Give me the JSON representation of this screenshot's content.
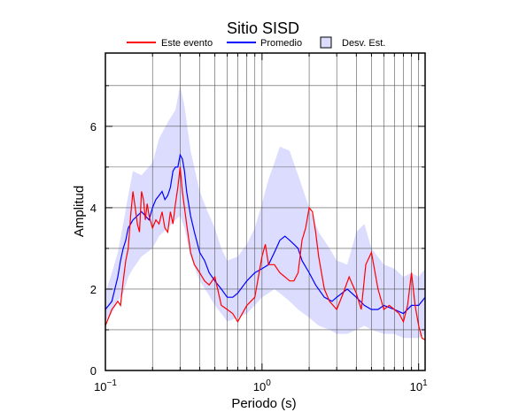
{
  "chart_data": {
    "type": "line",
    "title": "Sitio SISD",
    "xlabel": "Periodo (s)",
    "ylabel": "Amplitud",
    "xscale": "log",
    "xlim": [
      0.1,
      11
    ],
    "ylim": [
      0,
      7.8
    ],
    "x_tick_labels": [
      {
        "value": 0.1,
        "base": "10",
        "exp": "−1"
      },
      {
        "value": 1,
        "base": "10",
        "exp": "0"
      },
      {
        "value": 10,
        "base": "10",
        "exp": "1"
      }
    ],
    "y_ticks": [
      0,
      2,
      4,
      6
    ],
    "grid": true,
    "legend_position": "top",
    "band": {
      "name": "Desv. Est.",
      "color": "#dcdcff",
      "x": [
        0.1,
        0.11,
        0.12,
        0.13,
        0.14,
        0.15,
        0.17,
        0.2,
        0.22,
        0.25,
        0.28,
        0.3,
        0.32,
        0.35,
        0.4,
        0.45,
        0.5,
        0.55,
        0.6,
        0.7,
        0.8,
        0.9,
        1.0,
        1.1,
        1.2,
        1.3,
        1.5,
        1.7,
        2.0,
        2.3,
        2.7,
        3.0,
        3.5,
        4.0,
        4.5,
        5.0,
        6.0,
        7.0,
        8.0,
        9.0,
        10.0,
        11.0
      ],
      "upper": [
        1.9,
        2.4,
        2.9,
        3.6,
        4.3,
        4.9,
        4.8,
        5.1,
        5.7,
        6.1,
        6.4,
        7.0,
        6.5,
        5.4,
        4.4,
        3.9,
        3.5,
        3.0,
        2.7,
        2.8,
        3.1,
        3.5,
        4.1,
        4.7,
        5.1,
        5.5,
        5.4,
        4.8,
        4.0,
        3.4,
        3.0,
        2.7,
        2.6,
        3.4,
        3.6,
        3.0,
        2.6,
        2.5,
        2.3,
        2.4,
        2.3,
        2.5
      ],
      "lower": [
        1.2,
        1.4,
        1.7,
        1.9,
        2.3,
        2.5,
        2.8,
        3.0,
        3.3,
        3.5,
        3.7,
        3.8,
        3.5,
        2.8,
        2.2,
        1.9,
        1.6,
        1.4,
        1.2,
        1.3,
        1.4,
        1.6,
        1.8,
        1.9,
        2.0,
        1.9,
        1.7,
        1.5,
        1.3,
        1.1,
        1.0,
        0.9,
        0.9,
        1.0,
        1.1,
        1.0,
        0.9,
        0.9,
        0.8,
        0.8,
        0.8,
        0.9
      ]
    },
    "series": [
      {
        "name": "Este evento",
        "color": "#ff0000",
        "x": [
          0.1,
          0.105,
          0.11,
          0.115,
          0.12,
          0.125,
          0.13,
          0.135,
          0.14,
          0.145,
          0.15,
          0.155,
          0.16,
          0.165,
          0.17,
          0.175,
          0.18,
          0.185,
          0.19,
          0.2,
          0.21,
          0.22,
          0.23,
          0.24,
          0.25,
          0.26,
          0.27,
          0.28,
          0.29,
          0.3,
          0.31,
          0.32,
          0.33,
          0.35,
          0.37,
          0.4,
          0.43,
          0.46,
          0.5,
          0.55,
          0.6,
          0.65,
          0.7,
          0.8,
          0.9,
          1.0,
          1.05,
          1.1,
          1.2,
          1.3,
          1.4,
          1.5,
          1.6,
          1.7,
          1.8,
          1.9,
          2.0,
          2.1,
          2.2,
          2.3,
          2.5,
          2.7,
          3.0,
          3.3,
          3.6,
          4.0,
          4.3,
          4.6,
          5.0,
          5.5,
          6.0,
          6.5,
          7.0,
          7.5,
          8.0,
          8.5,
          9.0,
          9.5,
          10.0,
          10.5,
          11.0
        ],
        "y": [
          1.1,
          1.3,
          1.5,
          1.6,
          1.7,
          1.6,
          2.2,
          2.7,
          3.0,
          3.8,
          4.4,
          4.0,
          3.6,
          3.4,
          4.4,
          4.2,
          3.7,
          4.1,
          3.8,
          3.5,
          3.7,
          3.6,
          3.9,
          3.5,
          3.4,
          3.9,
          3.6,
          4.1,
          4.5,
          5.0,
          4.4,
          4.0,
          3.6,
          2.9,
          2.6,
          2.4,
          2.2,
          2.1,
          2.3,
          1.6,
          1.5,
          1.4,
          1.2,
          1.6,
          1.8,
          2.8,
          3.1,
          2.6,
          2.6,
          2.4,
          2.3,
          2.2,
          2.2,
          2.4,
          3.2,
          3.5,
          4.0,
          3.9,
          3.4,
          2.8,
          2.0,
          1.7,
          1.5,
          1.9,
          2.3,
          1.9,
          1.5,
          2.6,
          2.9,
          2.0,
          1.5,
          1.6,
          1.5,
          1.4,
          1.2,
          1.6,
          2.4,
          1.6,
          1.1,
          0.8,
          0.75
        ]
      },
      {
        "name": "Promedio",
        "color": "#0000ff",
        "x": [
          0.1,
          0.105,
          0.11,
          0.115,
          0.12,
          0.125,
          0.13,
          0.135,
          0.14,
          0.145,
          0.15,
          0.16,
          0.17,
          0.18,
          0.19,
          0.2,
          0.21,
          0.22,
          0.23,
          0.24,
          0.25,
          0.26,
          0.27,
          0.28,
          0.29,
          0.3,
          0.31,
          0.32,
          0.33,
          0.35,
          0.37,
          0.4,
          0.43,
          0.46,
          0.5,
          0.55,
          0.6,
          0.65,
          0.7,
          0.8,
          0.9,
          1.0,
          1.1,
          1.2,
          1.3,
          1.4,
          1.5,
          1.6,
          1.7,
          1.8,
          2.0,
          2.2,
          2.5,
          2.8,
          3.0,
          3.5,
          4.0,
          4.5,
          5.0,
          5.5,
          6.0,
          7.0,
          8.0,
          9.0,
          10.0,
          11.0
        ],
        "y": [
          1.5,
          1.6,
          1.7,
          2.0,
          2.3,
          2.7,
          3.0,
          3.2,
          3.5,
          3.6,
          3.7,
          3.8,
          3.9,
          3.8,
          3.7,
          4.0,
          4.2,
          4.3,
          4.4,
          4.2,
          4.3,
          4.5,
          4.9,
          5.0,
          5.0,
          5.3,
          5.2,
          4.9,
          4.4,
          3.8,
          3.4,
          2.9,
          2.7,
          2.4,
          2.2,
          2.0,
          1.8,
          1.8,
          1.9,
          2.2,
          2.4,
          2.5,
          2.6,
          2.9,
          3.2,
          3.3,
          3.2,
          3.1,
          3.0,
          2.7,
          2.4,
          2.1,
          1.8,
          1.7,
          1.8,
          2.0,
          1.8,
          1.6,
          1.5,
          1.5,
          1.6,
          1.5,
          1.4,
          1.6,
          1.6,
          1.8
        ]
      }
    ]
  }
}
